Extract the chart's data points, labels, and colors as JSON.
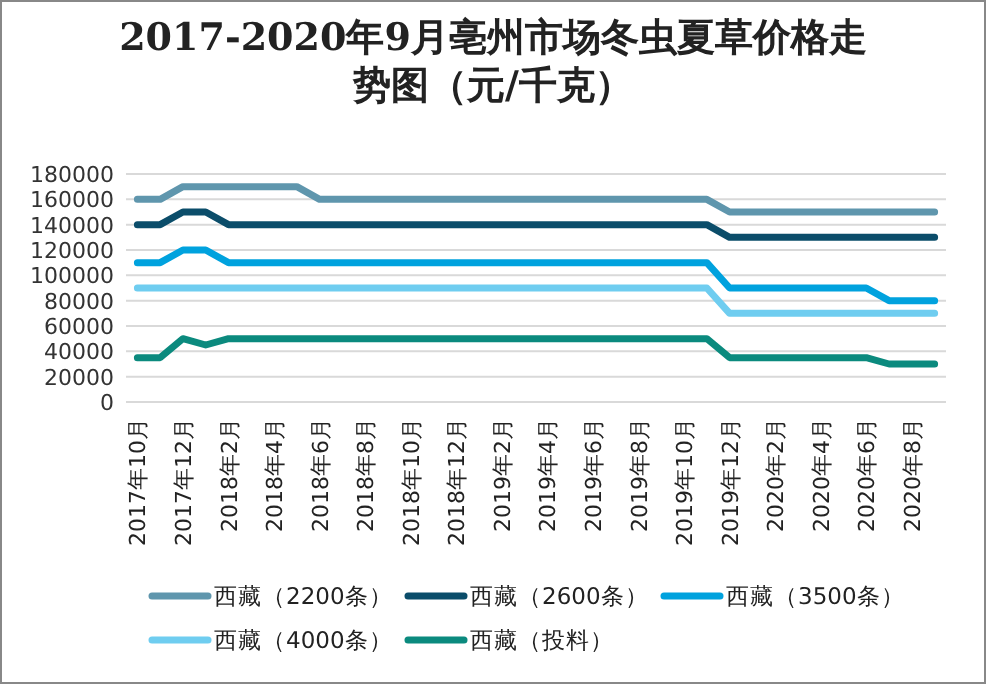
{
  "chart_data": {
    "type": "line",
    "title": "2017-2020年9月亳州市场冬虫夏草价格走势图（元/千克）",
    "categories": [
      "2017年10月",
      null,
      "2017年12月",
      null,
      "2018年2月",
      null,
      "2018年4月",
      null,
      "2018年6月",
      null,
      "2018年8月",
      null,
      "2018年10月",
      null,
      "2018年12月",
      null,
      "2019年2月",
      null,
      "2019年4月",
      null,
      "2019年6月",
      null,
      "2019年8月",
      null,
      "2019年10月",
      null,
      "2019年12月",
      null,
      "2020年2月",
      null,
      "2020年4月",
      null,
      "2020年6月",
      null,
      "2020年8月",
      null
    ],
    "series": [
      {
        "name": "西藏（2200条）",
        "color": "#5f96ad",
        "values": [
          160000,
          160000,
          170000,
          170000,
          170000,
          170000,
          170000,
          170000,
          160000,
          160000,
          160000,
          160000,
          160000,
          160000,
          160000,
          160000,
          160000,
          160000,
          160000,
          160000,
          160000,
          160000,
          160000,
          160000,
          160000,
          160000,
          150000,
          150000,
          150000,
          150000,
          150000,
          150000,
          150000,
          150000,
          150000,
          150000
        ]
      },
      {
        "name": "西藏（2600条）",
        "color": "#0b4d6a",
        "values": [
          140000,
          140000,
          150000,
          150000,
          140000,
          140000,
          140000,
          140000,
          140000,
          140000,
          140000,
          140000,
          140000,
          140000,
          140000,
          140000,
          140000,
          140000,
          140000,
          140000,
          140000,
          140000,
          140000,
          140000,
          140000,
          140000,
          130000,
          130000,
          130000,
          130000,
          130000,
          130000,
          130000,
          130000,
          130000,
          130000
        ]
      },
      {
        "name": "西藏（3500条）",
        "color": "#00a2de",
        "values": [
          110000,
          110000,
          120000,
          120000,
          110000,
          110000,
          110000,
          110000,
          110000,
          110000,
          110000,
          110000,
          110000,
          110000,
          110000,
          110000,
          110000,
          110000,
          110000,
          110000,
          110000,
          110000,
          110000,
          110000,
          110000,
          110000,
          90000,
          90000,
          90000,
          90000,
          90000,
          90000,
          90000,
          80000,
          80000,
          80000
        ]
      },
      {
        "name": "西藏（4000条）",
        "color": "#6fcdf0",
        "values": [
          90000,
          90000,
          90000,
          90000,
          90000,
          90000,
          90000,
          90000,
          90000,
          90000,
          90000,
          90000,
          90000,
          90000,
          90000,
          90000,
          90000,
          90000,
          90000,
          90000,
          90000,
          90000,
          90000,
          90000,
          90000,
          90000,
          70000,
          70000,
          70000,
          70000,
          70000,
          70000,
          70000,
          70000,
          70000,
          70000
        ]
      },
      {
        "name": "西藏（投料）",
        "color": "#0b8a7e",
        "values": [
          35000,
          35000,
          50000,
          45000,
          50000,
          50000,
          50000,
          50000,
          50000,
          50000,
          50000,
          50000,
          50000,
          50000,
          50000,
          50000,
          50000,
          50000,
          50000,
          50000,
          50000,
          50000,
          50000,
          50000,
          50000,
          50000,
          35000,
          35000,
          35000,
          35000,
          35000,
          35000,
          35000,
          30000,
          30000,
          30000
        ]
      }
    ],
    "ylim": [
      0,
      180000
    ],
    "yticks": [
      0,
      20000,
      40000,
      60000,
      80000,
      100000,
      120000,
      140000,
      160000,
      180000
    ],
    "grid": "y",
    "legend": "bottom",
    "marker": "none",
    "line_style": "solid"
  }
}
